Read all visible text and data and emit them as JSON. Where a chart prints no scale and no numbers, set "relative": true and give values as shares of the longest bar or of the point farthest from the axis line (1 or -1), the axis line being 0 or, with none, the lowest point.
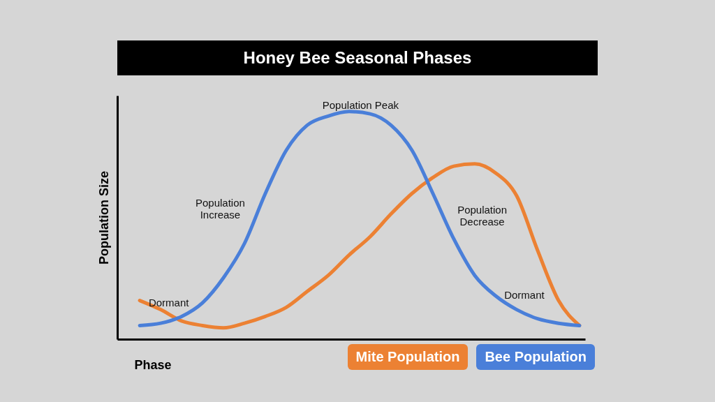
{
  "chart_data": {
    "type": "line",
    "title": "Honey Bee Seasonal Phases",
    "xlabel": "Phase",
    "ylabel": "Population Size",
    "relative": true,
    "legend": "bottom right",
    "marker": "none",
    "line_style": "solid",
    "grid": false,
    "categories": [
      null,
      null,
      null,
      null,
      null,
      null,
      null,
      null,
      null,
      null,
      null,
      null,
      null,
      null,
      null,
      null,
      null,
      null,
      null,
      null,
      null,
      null
    ],
    "series": [
      {
        "name": "Mite Population",
        "color": "#ec8133",
        "values": [
          0.17,
          0.13,
          0.08,
          0.06,
          0.05,
          0.07,
          0.1,
          0.14,
          0.21,
          0.28,
          0.37,
          0.45,
          0.55,
          0.64,
          0.71,
          0.76,
          0.77,
          0.73,
          0.63,
          0.39,
          0.17,
          0.06
        ]
      },
      {
        "name": "Bee Population",
        "color": "#4a7fd9",
        "values": [
          0.06,
          0.07,
          0.1,
          0.16,
          0.27,
          0.42,
          0.64,
          0.83,
          0.94,
          0.98,
          1,
          0.99,
          0.94,
          0.83,
          0.64,
          0.44,
          0.28,
          0.19,
          0.13,
          0.09,
          0.07,
          0.06
        ]
      }
    ],
    "annotations": [
      "Dormant",
      "Population\nIncrease",
      "Population Peak",
      "Population\nDecrease",
      "Dormant"
    ]
  }
}
